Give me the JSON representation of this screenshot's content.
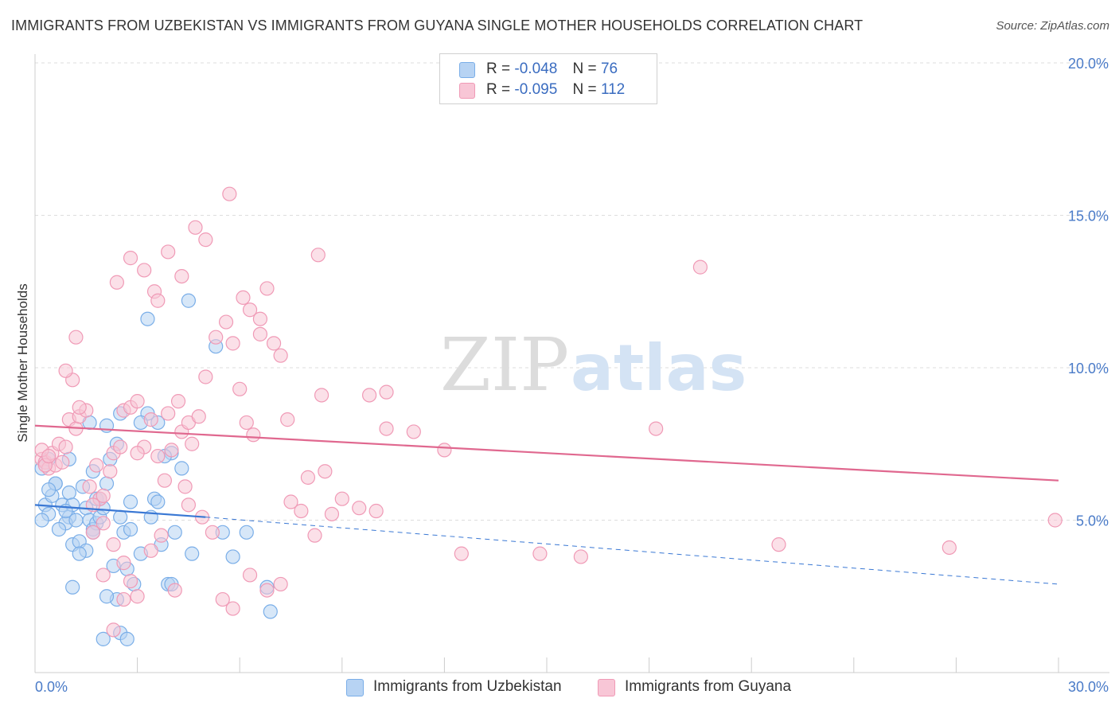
{
  "chart_data": {
    "type": "scatter",
    "title": "IMMIGRANTS FROM UZBEKISTAN VS IMMIGRANTS FROM GUYANA SINGLE MOTHER HOUSEHOLDS CORRELATION CHART",
    "source": "Source: ZipAtlas.com",
    "xlabel": "",
    "ylabel": "Single Mother Households",
    "xlim": [
      0,
      30
    ],
    "ylim": [
      0,
      20
    ],
    "x_tick_labels": [
      "0.0%",
      "30.0%"
    ],
    "y_ticks": [
      5,
      10,
      15,
      20
    ],
    "y_tick_labels": [
      "5.0%",
      "10.0%",
      "15.0%",
      "20.0%"
    ],
    "grid": true,
    "watermark": {
      "part1": "ZIP",
      "part2": "atlas"
    },
    "legend": [
      {
        "r_label": "R =",
        "r_value": "-0.048",
        "n_label": "N =",
        "n_value": "76"
      },
      {
        "r_label": "R =",
        "r_value": "-0.095",
        "n_label": "N =",
        "n_value": "112"
      }
    ],
    "series": [
      {
        "name": "Immigrants from Uzbekistan",
        "color": "#7aaee8",
        "fill": "#b7d3f3",
        "line_color": "#3a78d4",
        "trend": {
          "x0": 0,
          "y0": 5.5,
          "x_solid_end": 5.0,
          "y_solid_end": 5.1,
          "x1": 30,
          "y1": 2.9
        },
        "points": [
          [
            0.2,
            6.7
          ],
          [
            0.3,
            5.5
          ],
          [
            0.4,
            5.2
          ],
          [
            0.2,
            5.0
          ],
          [
            0.5,
            5.8
          ],
          [
            0.6,
            6.2
          ],
          [
            0.3,
            6.9
          ],
          [
            0.4,
            7.0
          ],
          [
            0.8,
            5.5
          ],
          [
            1.0,
            5.1
          ],
          [
            0.9,
            4.9
          ],
          [
            1.2,
            5.0
          ],
          [
            0.7,
            4.7
          ],
          [
            1.1,
            4.2
          ],
          [
            1.3,
            4.3
          ],
          [
            1.0,
            5.9
          ],
          [
            1.4,
            6.1
          ],
          [
            1.5,
            5.4
          ],
          [
            1.6,
            5.0
          ],
          [
            1.7,
            4.7
          ],
          [
            1.8,
            4.9
          ],
          [
            1.9,
            5.1
          ],
          [
            2.0,
            5.4
          ],
          [
            1.5,
            4.0
          ],
          [
            1.8,
            5.7
          ],
          [
            2.1,
            6.2
          ],
          [
            2.2,
            7.0
          ],
          [
            2.4,
            7.5
          ],
          [
            2.5,
            5.1
          ],
          [
            2.6,
            4.6
          ],
          [
            2.8,
            4.7
          ],
          [
            2.3,
            3.5
          ],
          [
            2.7,
            3.4
          ],
          [
            2.9,
            2.9
          ],
          [
            3.1,
            3.9
          ],
          [
            3.4,
            5.1
          ],
          [
            3.5,
            5.7
          ],
          [
            3.6,
            5.6
          ],
          [
            3.7,
            4.2
          ],
          [
            3.9,
            2.9
          ],
          [
            4.0,
            7.2
          ],
          [
            4.1,
            4.6
          ],
          [
            4.3,
            6.7
          ],
          [
            4.0,
            2.9
          ],
          [
            3.8,
            7.1
          ],
          [
            3.6,
            8.2
          ],
          [
            3.3,
            8.5
          ],
          [
            3.1,
            8.2
          ],
          [
            2.5,
            8.5
          ],
          [
            2.1,
            8.1
          ],
          [
            1.7,
            6.6
          ],
          [
            1.9,
            5.7
          ],
          [
            1.1,
            5.5
          ],
          [
            0.9,
            5.3
          ],
          [
            0.6,
            6.2
          ],
          [
            4.5,
            12.2
          ],
          [
            3.3,
            11.6
          ],
          [
            5.3,
            10.7
          ],
          [
            5.5,
            4.6
          ],
          [
            4.6,
            3.9
          ],
          [
            5.8,
            3.8
          ],
          [
            6.2,
            4.6
          ],
          [
            6.8,
            2.8
          ],
          [
            6.9,
            2.0
          ],
          [
            2.0,
            1.1
          ],
          [
            2.5,
            1.3
          ],
          [
            2.7,
            1.1
          ],
          [
            2.4,
            2.4
          ],
          [
            2.1,
            2.5
          ],
          [
            1.1,
            2.8
          ],
          [
            1.3,
            3.9
          ],
          [
            1.7,
            4.6
          ],
          [
            2.8,
            5.6
          ],
          [
            1.0,
            7.0
          ],
          [
            1.6,
            8.2
          ],
          [
            0.4,
            6.0
          ]
        ]
      },
      {
        "name": "Immigrants from Guyana",
        "color": "#f09ab6",
        "fill": "#f8c6d6",
        "line_color": "#e0688f",
        "trend": {
          "x0": 0,
          "y0": 8.1,
          "x1": 30,
          "y1": 6.3
        },
        "points": [
          [
            0.2,
            7.0
          ],
          [
            0.3,
            6.9
          ],
          [
            0.4,
            6.7
          ],
          [
            0.5,
            7.2
          ],
          [
            0.6,
            6.8
          ],
          [
            0.2,
            7.3
          ],
          [
            0.3,
            6.8
          ],
          [
            0.4,
            7.1
          ],
          [
            0.7,
            7.5
          ],
          [
            0.8,
            6.9
          ],
          [
            0.9,
            7.4
          ],
          [
            1.0,
            8.3
          ],
          [
            1.2,
            8.0
          ],
          [
            1.3,
            8.4
          ],
          [
            1.5,
            8.6
          ],
          [
            1.6,
            6.1
          ],
          [
            1.8,
            6.8
          ],
          [
            1.9,
            5.7
          ],
          [
            2.0,
            5.8
          ],
          [
            2.2,
            6.6
          ],
          [
            2.3,
            7.2
          ],
          [
            2.5,
            7.4
          ],
          [
            2.6,
            8.6
          ],
          [
            2.8,
            8.7
          ],
          [
            3.0,
            8.9
          ],
          [
            3.2,
            7.4
          ],
          [
            3.4,
            8.3
          ],
          [
            3.6,
            7.1
          ],
          [
            3.8,
            6.3
          ],
          [
            3.9,
            8.5
          ],
          [
            4.0,
            7.3
          ],
          [
            4.2,
            8.9
          ],
          [
            4.3,
            7.9
          ],
          [
            4.5,
            8.2
          ],
          [
            4.6,
            7.5
          ],
          [
            4.8,
            8.4
          ],
          [
            5.0,
            9.7
          ],
          [
            5.3,
            11.0
          ],
          [
            5.6,
            11.5
          ],
          [
            5.8,
            10.8
          ],
          [
            6.0,
            9.3
          ],
          [
            6.2,
            8.2
          ],
          [
            6.4,
            7.8
          ],
          [
            6.6,
            11.6
          ],
          [
            6.8,
            12.6
          ],
          [
            7.0,
            10.8
          ],
          [
            7.2,
            10.4
          ],
          [
            7.4,
            8.3
          ],
          [
            2.4,
            12.8
          ],
          [
            2.8,
            13.6
          ],
          [
            3.2,
            13.2
          ],
          [
            3.5,
            12.5
          ],
          [
            3.6,
            12.2
          ],
          [
            3.9,
            13.8
          ],
          [
            4.3,
            13.0
          ],
          [
            4.7,
            14.6
          ],
          [
            5.0,
            14.2
          ],
          [
            5.7,
            15.7
          ],
          [
            6.1,
            12.3
          ],
          [
            6.3,
            11.9
          ],
          [
            6.6,
            11.1
          ],
          [
            1.2,
            11.0
          ],
          [
            1.1,
            9.6
          ],
          [
            0.9,
            9.9
          ],
          [
            1.3,
            8.7
          ],
          [
            1.7,
            5.5
          ],
          [
            2.0,
            4.9
          ],
          [
            2.3,
            4.2
          ],
          [
            2.6,
            3.6
          ],
          [
            2.8,
            3.0
          ],
          [
            3.0,
            2.5
          ],
          [
            3.4,
            4.0
          ],
          [
            3.7,
            4.5
          ],
          [
            4.1,
            2.7
          ],
          [
            4.5,
            5.5
          ],
          [
            4.9,
            5.1
          ],
          [
            5.2,
            4.6
          ],
          [
            5.5,
            2.4
          ],
          [
            5.8,
            2.1
          ],
          [
            6.3,
            3.2
          ],
          [
            6.8,
            2.7
          ],
          [
            7.2,
            2.9
          ],
          [
            7.5,
            5.6
          ],
          [
            7.8,
            5.3
          ],
          [
            8.0,
            6.4
          ],
          [
            8.2,
            4.5
          ],
          [
            8.5,
            6.6
          ],
          [
            8.7,
            5.2
          ],
          [
            9.0,
            5.7
          ],
          [
            9.5,
            5.4
          ],
          [
            10.0,
            5.3
          ],
          [
            8.3,
            13.7
          ],
          [
            8.4,
            9.1
          ],
          [
            9.8,
            9.1
          ],
          [
            10.3,
            9.2
          ],
          [
            10.3,
            8.0
          ],
          [
            11.1,
            7.9
          ],
          [
            12.0,
            7.3
          ],
          [
            12.5,
            3.9
          ],
          [
            14.8,
            3.9
          ],
          [
            16.0,
            3.8
          ],
          [
            18.2,
            8.0
          ],
          [
            19.5,
            13.3
          ],
          [
            21.8,
            4.2
          ],
          [
            26.8,
            4.1
          ],
          [
            29.9,
            5.0
          ],
          [
            2.0,
            3.2
          ],
          [
            2.6,
            2.4
          ],
          [
            2.3,
            1.4
          ],
          [
            1.7,
            4.6
          ],
          [
            3.0,
            7.2
          ],
          [
            4.4,
            6.1
          ]
        ]
      }
    ]
  }
}
